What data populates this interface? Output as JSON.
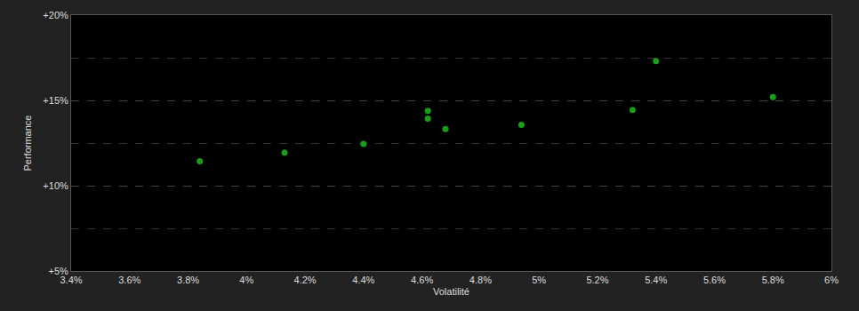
{
  "chart_data": {
    "type": "scatter",
    "x_label": "Volatilité",
    "y_label": "Performance",
    "x": [
      3.84,
      4.13,
      4.4,
      4.62,
      4.62,
      4.68,
      4.94,
      5.32,
      5.4,
      5.8
    ],
    "values": [
      11.43,
      11.94,
      12.45,
      14.39,
      13.93,
      13.32,
      13.57,
      14.44,
      17.3,
      15.2
    ],
    "color": "#1a9e1a",
    "marker": "circle",
    "xlim": [
      3.4,
      6
    ],
    "xticks": [
      {
        "value": 3.4,
        "label": "3.4%"
      },
      {
        "value": 3.6,
        "label": "3.6%"
      },
      {
        "value": 3.8,
        "label": "3.8%"
      },
      {
        "value": 4,
        "label": "4%"
      },
      {
        "value": 4.2,
        "label": "4.2%"
      },
      {
        "value": 4.4,
        "label": "4.4%"
      },
      {
        "value": 4.6,
        "label": "4.6%"
      },
      {
        "value": 4.8,
        "label": "4.8%"
      },
      {
        "value": 5,
        "label": "5%"
      },
      {
        "value": 5.2,
        "label": "5.2%"
      },
      {
        "value": 5.4,
        "label": "5.4%"
      },
      {
        "value": 5.6,
        "label": "5.6%"
      },
      {
        "value": 5.8,
        "label": "5.8%"
      },
      {
        "value": 6,
        "label": "6%"
      }
    ],
    "ylim": [
      5,
      20
    ],
    "yticks": [
      {
        "value": 5,
        "label": "+5%"
      },
      {
        "value": 10,
        "label": "+10%"
      },
      {
        "value": 15,
        "label": "+15%"
      },
      {
        "value": 20,
        "label": "+20%"
      }
    ],
    "grid": true
  }
}
